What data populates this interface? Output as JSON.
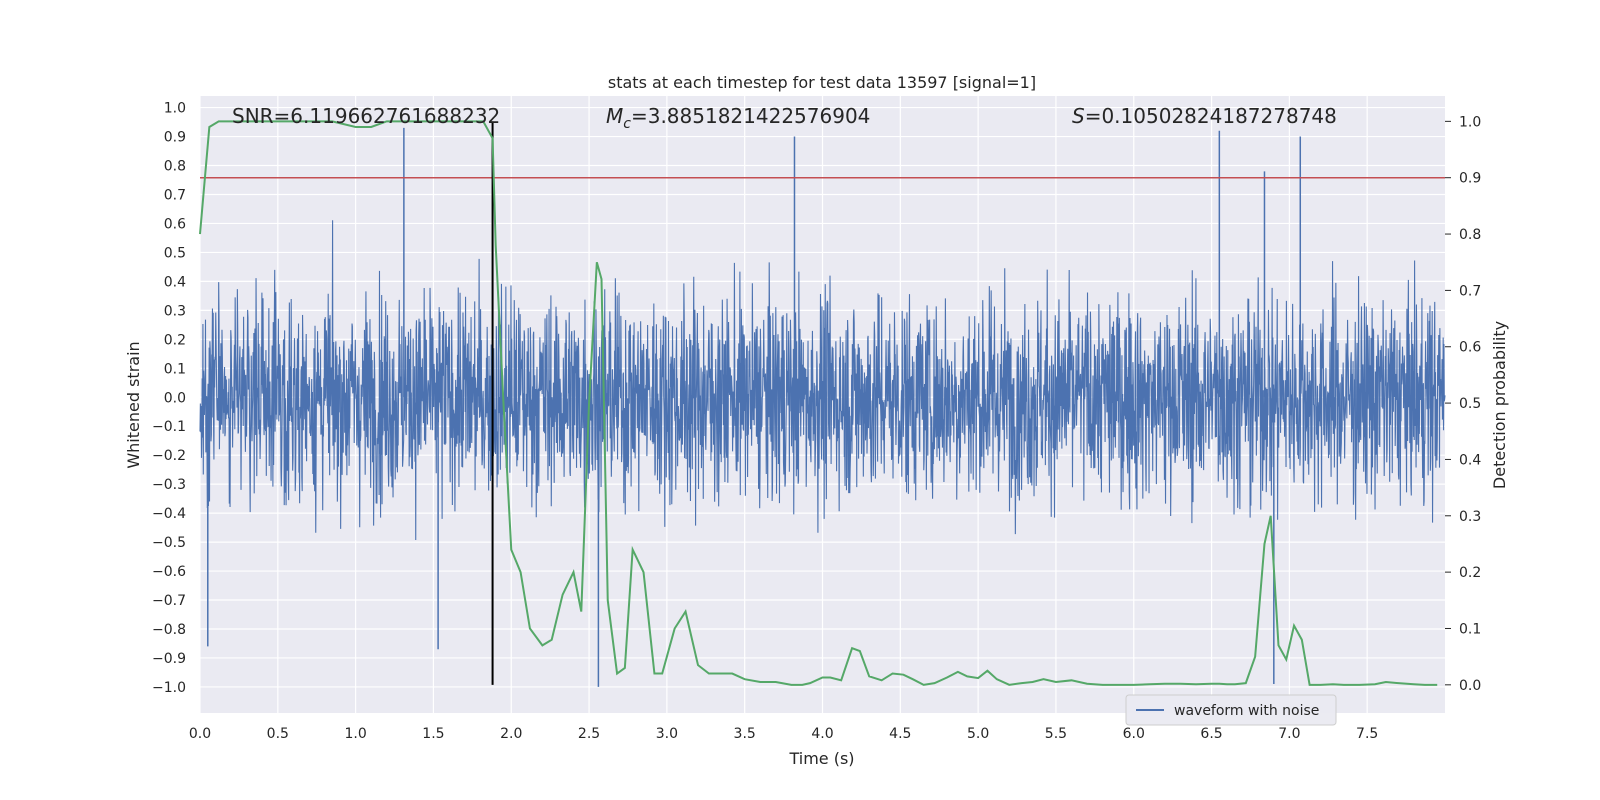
{
  "chart_data": {
    "type": "line",
    "title": "stats at each timestep for test data 13597 [signal=1]",
    "xlabel": "Time (s)",
    "ylabel_left": "Whitened strain",
    "ylabel_right": "Detection probability",
    "xlim": [
      0,
      8.0
    ],
    "ylim_left": [
      -1.09,
      1.04
    ],
    "ylim_right": [
      -0.05,
      1.045
    ],
    "x_ticks": [
      "0.0",
      "0.5",
      "1.0",
      "1.5",
      "2.0",
      "2.5",
      "3.0",
      "3.5",
      "4.0",
      "4.5",
      "5.0",
      "5.5",
      "6.0",
      "6.5",
      "7.0",
      "7.5"
    ],
    "y_ticks_left": [
      "1.0",
      "0.9",
      "0.8",
      "0.7",
      "0.6",
      "0.5",
      "0.4",
      "0.3",
      "0.2",
      "0.1",
      "0.0",
      "-0.1",
      "-0.2",
      "-0.3",
      "-0.4",
      "-0.5",
      "-0.6",
      "-0.7",
      "-0.8",
      "-0.9",
      "-1.0"
    ],
    "y_ticks_right": [
      "1.0",
      "0.9",
      "0.8",
      "0.7",
      "0.6",
      "0.5",
      "0.4",
      "0.3",
      "0.2",
      "0.1",
      "0.0"
    ],
    "grid": true,
    "legend_position": "lower-right",
    "legend": [
      "waveform with noise"
    ],
    "annotations": {
      "snr": "SNR=6.119662761688232",
      "mc_symbol": "M",
      "mc_sub": "c",
      "mc_value": "=3.8851821422576904",
      "s_symbol": "S",
      "s_value": "=0.10502824187278748"
    },
    "threshold": 0.9,
    "event_time": 1.88,
    "waveform": {
      "name": "waveform with noise",
      "color": "#4c72b0",
      "description_range": [
        -1.0,
        0.93
      ],
      "peaks": [
        {
          "x": 1.31,
          "y": 0.93
        },
        {
          "x": 3.82,
          "y": 0.9
        },
        {
          "x": 6.55,
          "y": 0.92
        },
        {
          "x": 6.84,
          "y": 0.78
        },
        {
          "x": 7.07,
          "y": 0.9
        },
        {
          "x": 2.56,
          "y": -1.0
        },
        {
          "x": 6.9,
          "y": -0.99
        },
        {
          "x": 0.05,
          "y": -0.86
        },
        {
          "x": 1.53,
          "y": -0.87
        }
      ]
    },
    "probability": {
      "name": "Detection probability",
      "color": "#55a868",
      "x": [
        0.0,
        0.06,
        0.12,
        0.2,
        0.3,
        0.5,
        0.7,
        0.85,
        1.0,
        1.1,
        1.2,
        1.3,
        1.4,
        1.5,
        1.6,
        1.7,
        1.82,
        1.88,
        1.9,
        1.95,
        2.0,
        2.06,
        2.12,
        2.2,
        2.26,
        2.33,
        2.4,
        2.45,
        2.5,
        2.55,
        2.58,
        2.62,
        2.68,
        2.73,
        2.78,
        2.85,
        2.92,
        2.97,
        3.05,
        3.12,
        3.2,
        3.27,
        3.35,
        3.42,
        3.5,
        3.6,
        3.7,
        3.8,
        3.87,
        3.92,
        4.0,
        4.05,
        4.12,
        4.19,
        4.24,
        4.3,
        4.38,
        4.45,
        4.52,
        4.58,
        4.65,
        4.72,
        4.8,
        4.87,
        4.93,
        5.0,
        5.06,
        5.12,
        5.2,
        5.28,
        5.35,
        5.42,
        5.5,
        5.6,
        5.7,
        5.8,
        5.9,
        6.0,
        6.1,
        6.2,
        6.3,
        6.4,
        6.5,
        6.55,
        6.6,
        6.65,
        6.72,
        6.78,
        6.84,
        6.88,
        6.93,
        6.98,
        7.03,
        7.08,
        7.13,
        7.2,
        7.28,
        7.35,
        7.45,
        7.55,
        7.62,
        7.7,
        7.8,
        7.87,
        7.95
      ],
      "y": [
        0.8,
        0.99,
        1.0,
        1.0,
        1.0,
        1.0,
        1.0,
        1.0,
        0.99,
        0.99,
        1.0,
        1.0,
        1.0,
        1.0,
        1.0,
        1.0,
        1.0,
        0.97,
        0.78,
        0.5,
        0.24,
        0.2,
        0.1,
        0.07,
        0.08,
        0.16,
        0.2,
        0.13,
        0.5,
        0.75,
        0.72,
        0.15,
        0.02,
        0.03,
        0.24,
        0.2,
        0.02,
        0.02,
        0.1,
        0.13,
        0.035,
        0.02,
        0.02,
        0.02,
        0.01,
        0.005,
        0.005,
        0.0,
        0.0,
        0.003,
        0.013,
        0.013,
        0.008,
        0.065,
        0.06,
        0.015,
        0.008,
        0.02,
        0.018,
        0.01,
        0.0,
        0.003,
        0.013,
        0.023,
        0.015,
        0.012,
        0.025,
        0.01,
        0.0,
        0.003,
        0.005,
        0.01,
        0.005,
        0.008,
        0.002,
        0.0,
        0.0,
        0.0,
        0.001,
        0.002,
        0.002,
        0.001,
        0.002,
        0.002,
        0.001,
        0.001,
        0.003,
        0.05,
        0.25,
        0.3,
        0.07,
        0.045,
        0.105,
        0.08,
        0.0,
        0.0,
        0.001,
        0.0,
        0.0,
        0.001,
        0.005,
        0.003,
        0.001,
        0.0,
        0.0
      ]
    }
  }
}
